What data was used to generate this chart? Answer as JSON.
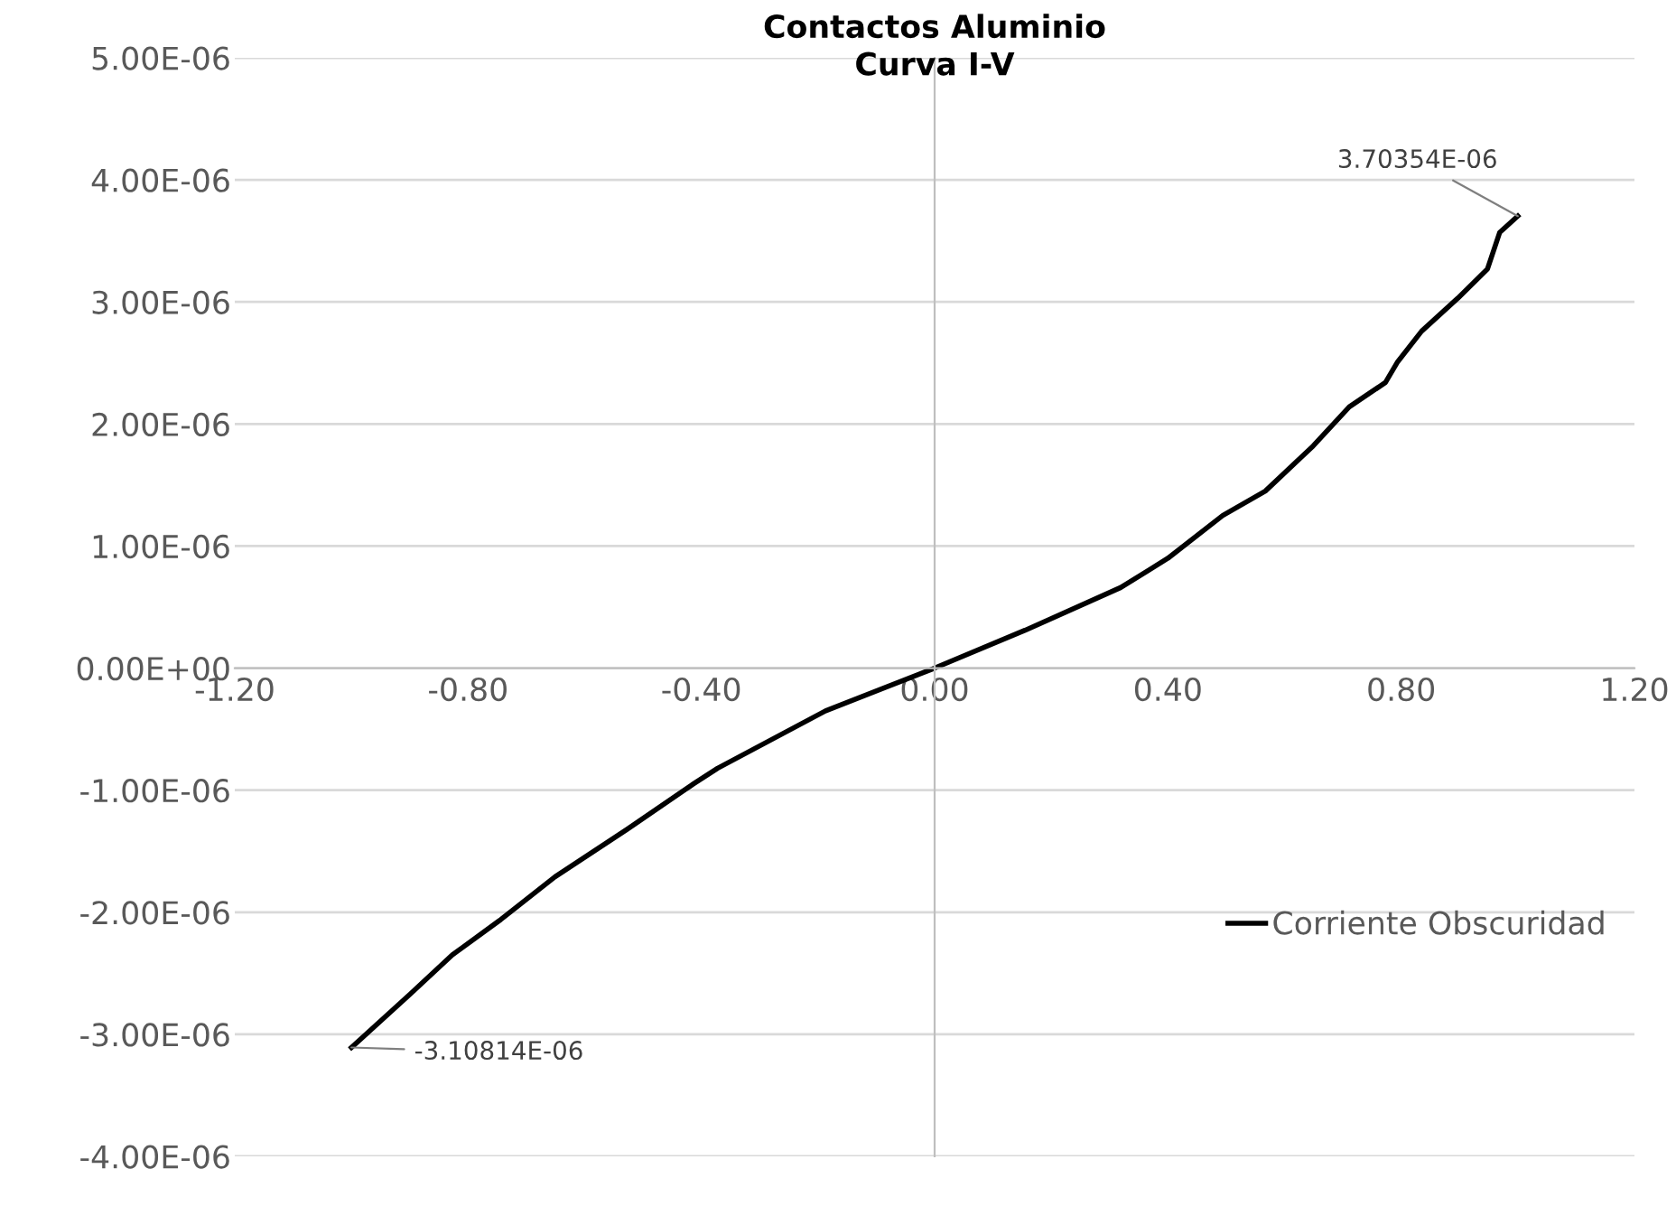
{
  "chart_data": {
    "type": "line",
    "title": "Contactos Aluminio\nCurva I-V",
    "series": [
      {
        "name": "Corriente Obscuridad",
        "color": "#000000",
        "x": [
          -1.0,
          -0.899,
          -0.827,
          -0.744,
          -0.651,
          -0.527,
          -0.414,
          -0.372,
          -0.187,
          0.0,
          0.155,
          0.319,
          0.4,
          0.494,
          0.567,
          0.649,
          0.711,
          0.773,
          0.794,
          0.835,
          0.897,
          0.948,
          0.969,
          1.0
        ],
        "values": [
          -3.10814e-06,
          -2.67e-06,
          -2.35e-06,
          -2.06e-06,
          -1.71e-06,
          -1.32e-06,
          -9.5e-07,
          -8.2e-07,
          -3.5e-07,
          0.0,
          3.1e-07,
          6.6e-07,
          9e-07,
          1.25e-06,
          1.45e-06,
          1.82e-06,
          2.14e-06,
          2.34e-06,
          2.51e-06,
          2.76e-06,
          3.03e-06,
          3.27e-06,
          3.57e-06,
          3.70354e-06
        ]
      }
    ],
    "annotations": [
      {
        "text": "-3.10814E-06",
        "x": -1.0,
        "y": -3.10814e-06
      },
      {
        "text": "3.70354E-06",
        "x": 1.0,
        "y": 3.70354e-06
      }
    ],
    "xlim": [
      -1.2,
      1.2
    ],
    "xticks": [
      {
        "value": -1.2,
        "label": "-1.20"
      },
      {
        "value": -0.8,
        "label": "-0.80"
      },
      {
        "value": -0.4,
        "label": "-0.40"
      },
      {
        "value": 0.0,
        "label": "0.00"
      },
      {
        "value": 0.4,
        "label": "0.40"
      },
      {
        "value": 0.8,
        "label": "0.80"
      },
      {
        "value": 1.2,
        "label": "1.20"
      }
    ],
    "ylim": [
      -4e-06,
      5e-06
    ],
    "yticks": [
      {
        "value": -4e-06,
        "label": "-4.00E-06"
      },
      {
        "value": -3e-06,
        "label": "-3.00E-06"
      },
      {
        "value": -2e-06,
        "label": "-2.00E-06"
      },
      {
        "value": -1e-06,
        "label": "-1.00E-06"
      },
      {
        "value": 0.0,
        "label": "0.00E+00"
      },
      {
        "value": 1e-06,
        "label": "1.00E-06"
      },
      {
        "value": 2e-06,
        "label": "2.00E-06"
      },
      {
        "value": 3e-06,
        "label": "3.00E-06"
      },
      {
        "value": 4e-06,
        "label": "4.00E-06"
      },
      {
        "value": 5e-06,
        "label": "5.00E-06"
      }
    ],
    "grid": "y",
    "legend": "right",
    "marker": "none",
    "line_style": "solid"
  }
}
